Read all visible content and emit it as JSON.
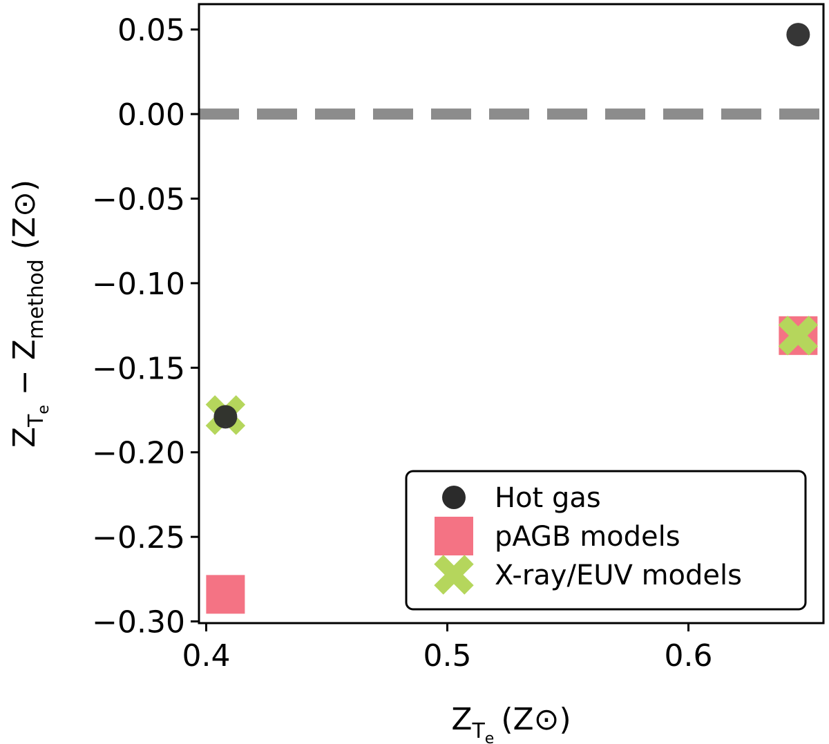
{
  "chart_data": {
    "type": "scatter",
    "xlabel": {
      "main": "Z",
      "sub": "T",
      "subsub": "e",
      "unit": "(Z⊙)"
    },
    "ylabel": {
      "main1": "Z",
      "sub1": "T",
      "subsub1": "e",
      "op": " − Z",
      "sub2": "method",
      "unit": " (Z⊙)"
    },
    "xlim": [
      0.397,
      0.656
    ],
    "ylim": [
      -0.301,
      0.065
    ],
    "xticks": [
      0.4,
      0.5,
      0.6
    ],
    "xtick_labels": [
      "0.4",
      "0.5",
      "0.6"
    ],
    "yticks": [
      0.05,
      0.0,
      -0.05,
      -0.1,
      -0.15,
      -0.2,
      -0.25,
      -0.3
    ],
    "ytick_labels": [
      "0.05",
      "0.00",
      "−0.05",
      "−0.10",
      "−0.15",
      "−0.20",
      "−0.25",
      "−0.30"
    ],
    "reference_line": {
      "y": 0.0,
      "style": "dashed",
      "color": "#8c8c8c"
    },
    "legend": {
      "position": "lower-right"
    },
    "series": [
      {
        "name": "Hot gas",
        "marker": "circle",
        "color": "#2b2b2b",
        "points": [
          {
            "x": 0.408,
            "y": -0.179
          },
          {
            "x": 0.6455,
            "y": 0.047
          }
        ]
      },
      {
        "name": "pAGB models",
        "marker": "square",
        "color": "#f47384",
        "points": [
          {
            "x": 0.408,
            "y": -0.284
          },
          {
            "x": 0.6455,
            "y": -0.131
          }
        ]
      },
      {
        "name": "X-ray/EUV models",
        "marker": "x",
        "color": "#b5d65c",
        "points": [
          {
            "x": 0.408,
            "y": -0.178
          },
          {
            "x": 0.6455,
            "y": -0.131
          }
        ]
      }
    ]
  }
}
